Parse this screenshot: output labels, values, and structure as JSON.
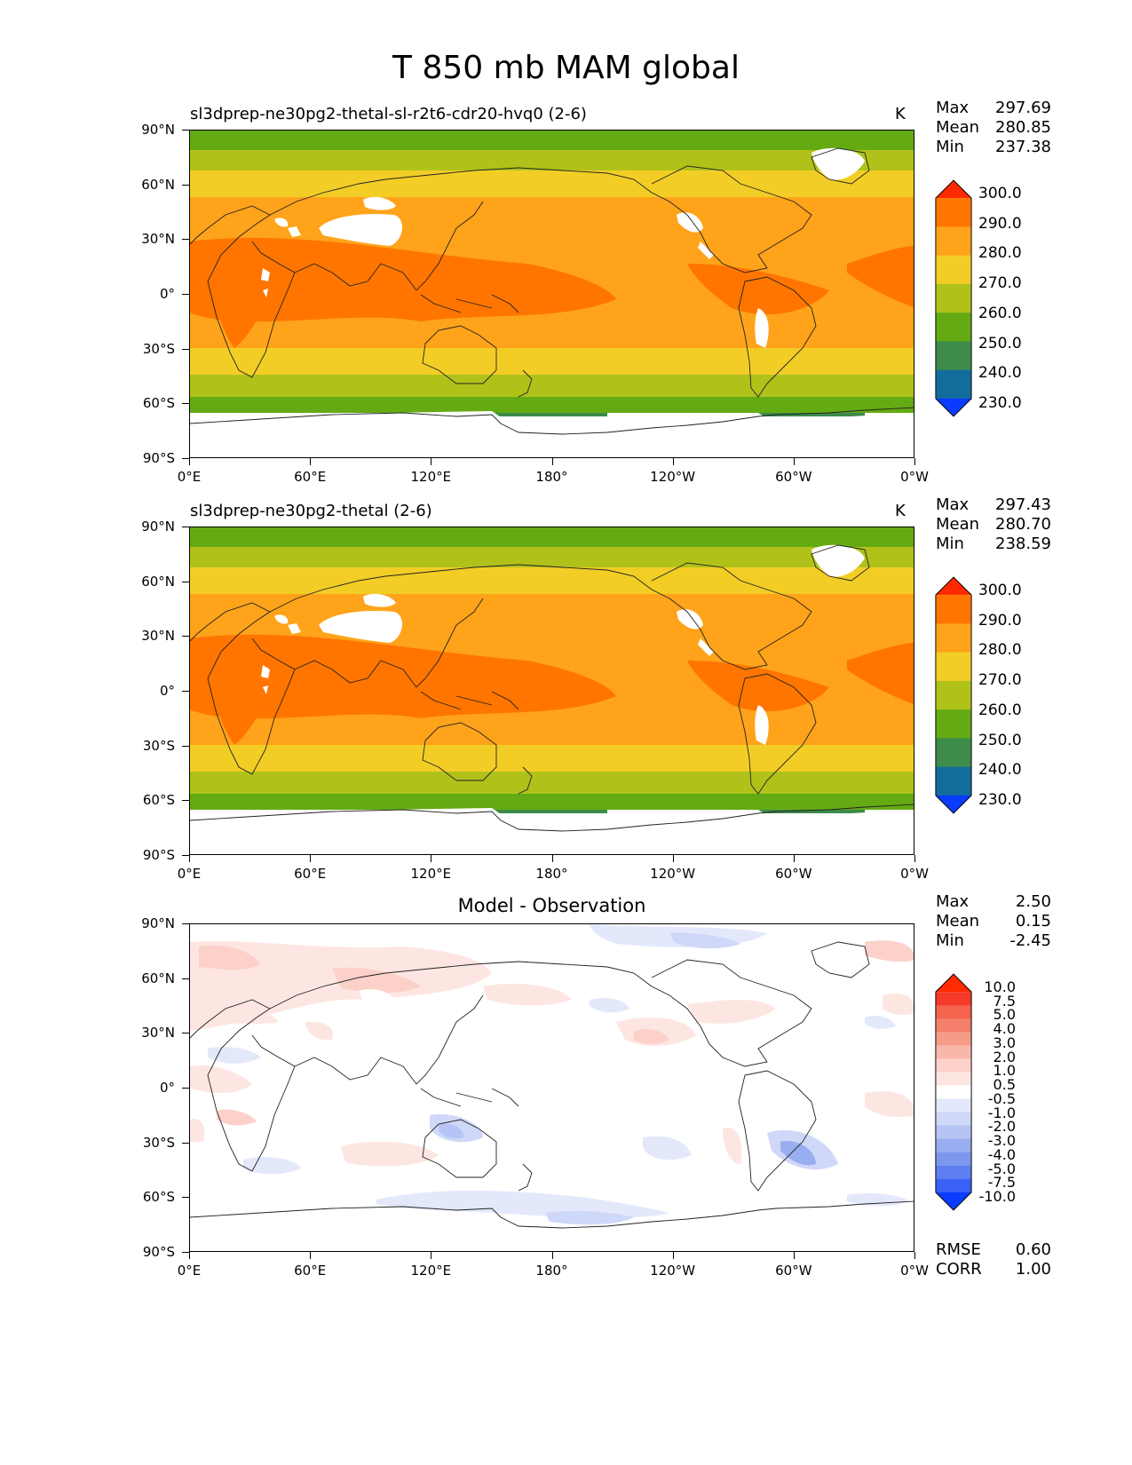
{
  "title": "T 850 mb MAM global",
  "panels": [
    {
      "label": "sl3dprep-ne30pg2-thetal-sl-r2t6-cdr20-hvq0 (2-6)",
      "unit": "K",
      "stats": {
        "max_label": "Max",
        "max": "297.69",
        "mean_label": "Mean",
        "mean": "280.85",
        "min_label": "Min",
        "min": "237.38"
      }
    },
    {
      "label": "sl3dprep-ne30pg2-thetal (2-6)",
      "unit": "K",
      "stats": {
        "max_label": "Max",
        "max": "297.43",
        "mean_label": "Mean",
        "mean": "280.70",
        "min_label": "Min",
        "min": "238.59"
      }
    },
    {
      "label": "Model - Observation",
      "unit": "",
      "stats": {
        "max_label": "Max",
        "max": "2.50",
        "mean_label": "Mean",
        "mean": "0.15",
        "min_label": "Min",
        "min": "-2.45"
      },
      "extra_stats": {
        "rmse_label": "RMSE",
        "rmse": "0.60",
        "corr_label": "CORR",
        "corr": "1.00"
      }
    }
  ],
  "axes": {
    "lat_ticks": [
      "90°N",
      "60°N",
      "30°N",
      "0°",
      "30°S",
      "60°S",
      "90°S"
    ],
    "lon_ticks": [
      "0°E",
      "60°E",
      "120°E",
      "180°",
      "120°W",
      "60°W",
      "0°W"
    ]
  },
  "colorbar_main": {
    "levels": [
      "300.0",
      "290.0",
      "280.0",
      "270.0",
      "260.0",
      "250.0",
      "240.0",
      "230.0"
    ],
    "colors": [
      "#ff2a00",
      "#ff7500",
      "#ffa31a",
      "#f2cd26",
      "#b0c21a",
      "#64ab13",
      "#3d8c4a",
      "#136d9c",
      "#0a3cff"
    ]
  },
  "colorbar_diff": {
    "levels": [
      "10.0",
      "7.5",
      "5.0",
      "4.0",
      "3.0",
      "2.0",
      "1.0",
      "0.5",
      "-0.5",
      "-1.0",
      "-2.0",
      "-3.0",
      "-4.0",
      "-5.0",
      "-7.5",
      "-10.0"
    ],
    "colors": [
      "#ff2a00",
      "#f53a29",
      "#f5634f",
      "#f57f6b",
      "#f79b89",
      "#f9b7ab",
      "#fbd1c9",
      "#fde6e1",
      "#ffffff",
      "#e3e8fb",
      "#cfd8f8",
      "#b6c4f5",
      "#98aef1",
      "#7d97ee",
      "#5f7ff0",
      "#3a61f5",
      "#0a3cff"
    ]
  }
}
